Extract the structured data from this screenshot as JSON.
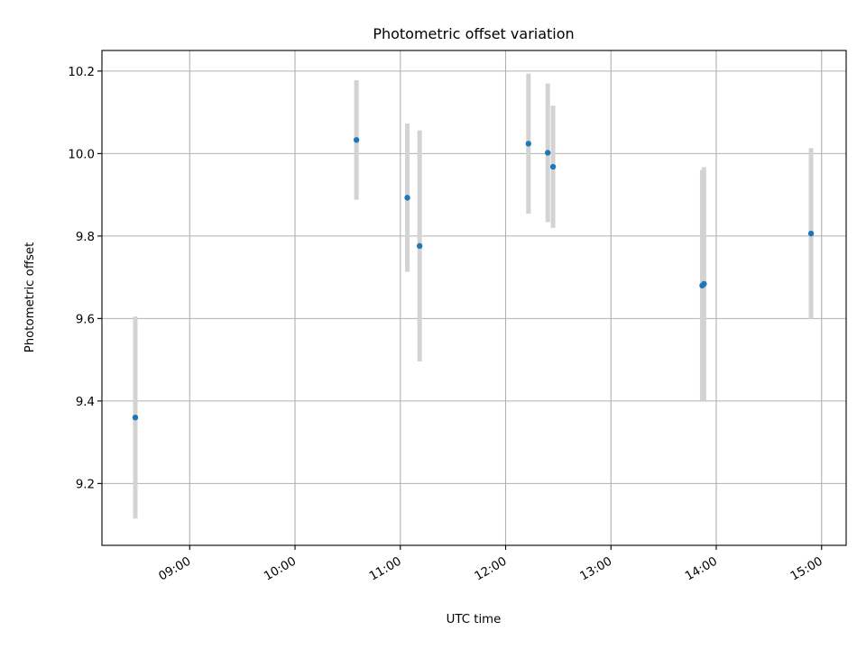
{
  "chart_data": {
    "type": "scatter",
    "title": "Photometric offset variation",
    "xlabel": "UTC time",
    "ylabel": "Photometric offset",
    "x_ticks": [
      "09:00",
      "10:00",
      "11:00",
      "12:00",
      "13:00",
      "14:00",
      "15:00"
    ],
    "x_tick_times": [
      "09:00",
      "10:00",
      "11:00",
      "12:00",
      "13:00",
      "14:00",
      "15:00"
    ],
    "xlim": [
      "08:10",
      "15:14"
    ],
    "y_ticks": [
      "9.2",
      "9.4",
      "9.6",
      "9.8",
      "10.0",
      "10.2"
    ],
    "ylim": [
      9.05,
      10.25
    ],
    "grid": true,
    "marker_color": "#1f77b4",
    "errorbar_color": "#d3d3d3",
    "points": [
      {
        "x": "08:29",
        "y": 9.36,
        "err": 0.245
      },
      {
        "x": "10:35",
        "y": 10.033,
        "err": 0.145
      },
      {
        "x": "11:04",
        "y": 9.893,
        "err": 0.18
      },
      {
        "x": "11:11",
        "y": 9.776,
        "err": 0.28
      },
      {
        "x": "12:13",
        "y": 10.024,
        "err": 0.17
      },
      {
        "x": "12:24",
        "y": 10.002,
        "err": 0.168
      },
      {
        "x": "12:27",
        "y": 9.968,
        "err": 0.148
      },
      {
        "x": "13:52",
        "y": 9.68,
        "err": 0.28
      },
      {
        "x": "13:53",
        "y": 9.684,
        "err": 0.283
      },
      {
        "x": "14:54",
        "y": 9.806,
        "err": 0.207
      }
    ]
  }
}
